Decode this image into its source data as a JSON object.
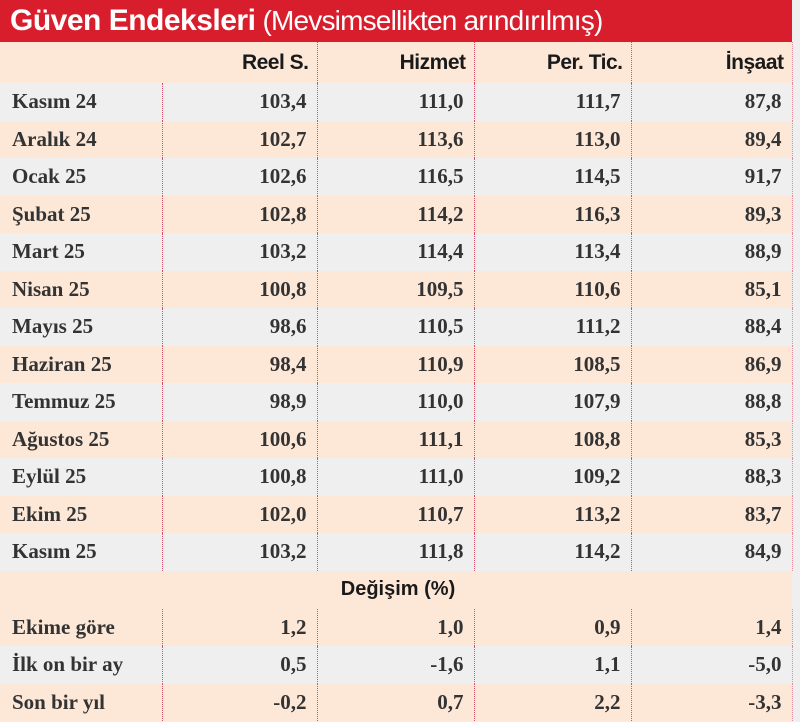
{
  "title": {
    "bold": "Güven Endeksleri",
    "light": "(Mevsimsellikten arındırılmış)"
  },
  "columns": [
    "",
    "Reel S.",
    "Hizmet",
    "Per. Tic.",
    "İnşaat"
  ],
  "rows": [
    {
      "label": "Kasım 24",
      "values": [
        "103,4",
        "111,0",
        "111,7",
        "87,8"
      ]
    },
    {
      "label": "Aralık 24",
      "values": [
        "102,7",
        "113,6",
        "113,0",
        "89,4"
      ]
    },
    {
      "label": "Ocak 25",
      "values": [
        "102,6",
        "116,5",
        "114,5",
        "91,7"
      ]
    },
    {
      "label": "Şubat 25",
      "values": [
        "102,8",
        "114,2",
        "116,3",
        "89,3"
      ]
    },
    {
      "label": "Mart 25",
      "values": [
        "103,2",
        "114,4",
        "113,4",
        "88,9"
      ]
    },
    {
      "label": "Nisan 25",
      "values": [
        "100,8",
        "109,5",
        "110,6",
        "85,1"
      ]
    },
    {
      "label": "Mayıs 25",
      "values": [
        "98,6",
        "110,5",
        "111,2",
        "88,4"
      ]
    },
    {
      "label": "Haziran 25",
      "values": [
        "98,4",
        "110,9",
        "108,5",
        "86,9"
      ]
    },
    {
      "label": "Temmuz 25",
      "values": [
        "98,9",
        "110,0",
        "107,9",
        "88,8"
      ]
    },
    {
      "label": "Ağustos 25",
      "values": [
        "100,6",
        "111,1",
        "108,8",
        "85,3"
      ]
    },
    {
      "label": "Eylül 25",
      "values": [
        "100,8",
        "111,0",
        "109,2",
        "88,3"
      ]
    },
    {
      "label": "Ekim 25",
      "values": [
        "102,0",
        "110,7",
        "113,2",
        "83,7"
      ]
    },
    {
      "label": "Kasım 25",
      "values": [
        "103,2",
        "111,8",
        "114,2",
        "84,9"
      ]
    }
  ],
  "change_section": {
    "label": "Değişim (%)",
    "rows": [
      {
        "label": "Ekime göre",
        "values": [
          "1,2",
          "1,0",
          "0,9",
          "1,4"
        ]
      },
      {
        "label": "İlk on bir ay",
        "values": [
          "0,5",
          "-1,6",
          "1,1",
          "-5,0"
        ]
      },
      {
        "label": "Son bir yıl",
        "values": [
          "-0,2",
          "0,7",
          "2,2",
          "-3,3"
        ]
      }
    ]
  },
  "colors": {
    "title_bg": "#d81e2d",
    "row_alt": "#fde8d8",
    "row_base": "#efeff0",
    "separator": "#d9506a"
  }
}
